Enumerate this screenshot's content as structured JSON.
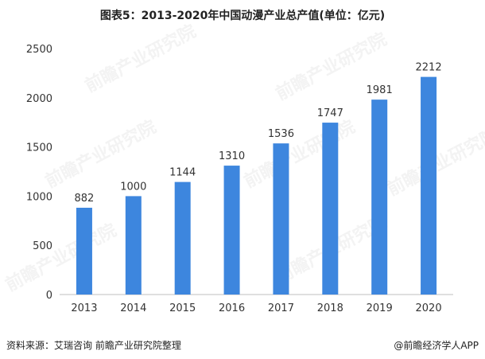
{
  "title": "图表5：2013-2020年中国动漫产业总产值(单位：亿元)",
  "footer": {
    "source": "资料来源：艾瑞咨询 前瞻产业研究院整理",
    "credit": "@前瞻经济学人APP"
  },
  "watermark": "前瞻产业研究院",
  "colors": {
    "bar": "#3d86de",
    "axis": "#bfbfbf",
    "text": "#333333"
  },
  "chart_data": {
    "type": "bar",
    "title": "图表5：2013-2020年中国动漫产业总产值(单位：亿元)",
    "categories": [
      "2013",
      "2014",
      "2015",
      "2016",
      "2017",
      "2018",
      "2019",
      "2020"
    ],
    "values": [
      882,
      1000,
      1144,
      1310,
      1536,
      1747,
      1981,
      2212
    ],
    "data_labels": [
      "882",
      "1000",
      "1144",
      "1310",
      "1536",
      "1747",
      "1981",
      "2212"
    ],
    "ylim": [
      0,
      2500
    ],
    "yticks": [
      0,
      500,
      1000,
      1500,
      2000,
      2500
    ],
    "ytick_labels": [
      "0",
      "500",
      "1000",
      "1500",
      "2000",
      "2500"
    ],
    "xlabel": "",
    "ylabel": "",
    "grid": false,
    "legend": "none"
  }
}
